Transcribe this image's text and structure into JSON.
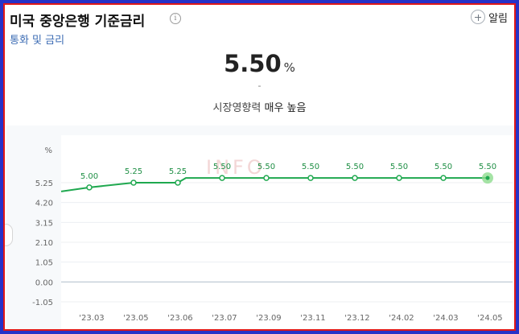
{
  "header": {
    "title": "미국 중앙은행 기준금리",
    "info_icon": "info-icon",
    "alarm_label": "알림",
    "subtitle": "통화 및 금리"
  },
  "summary": {
    "value": "5.50",
    "unit": "%",
    "change": "-",
    "impact_label": "시장영향력",
    "impact_level": "매우 높음"
  },
  "watermark": "INFO",
  "chart_data": {
    "type": "line",
    "y_unit_label": "%",
    "categories": [
      "'23.03",
      "'23.05",
      "'23.06",
      "'23.07",
      "'23.09",
      "'23.11",
      "'23.12",
      "'24.02",
      "'24.03",
      "'24.05"
    ],
    "values": [
      5.0,
      5.25,
      5.25,
      5.5,
      5.5,
      5.5,
      5.5,
      5.5,
      5.5,
      5.5
    ],
    "data_labels": [
      "5.00",
      "5.25",
      "5.25",
      "5.50",
      "5.50",
      "5.50",
      "5.50",
      "5.50",
      "5.50",
      "5.50"
    ],
    "y_ticks": [
      5.25,
      4.2,
      3.15,
      2.1,
      1.05,
      0.0,
      -1.05
    ],
    "y_tick_labels": [
      "5.25",
      "4.20",
      "3.15",
      "2.10",
      "1.05",
      "0.00",
      "-1.05"
    ],
    "ylim": [
      -1.05,
      5.25
    ],
    "grid": true,
    "line_color": "#1fa84f",
    "highlight_color": "#8edc8f"
  }
}
